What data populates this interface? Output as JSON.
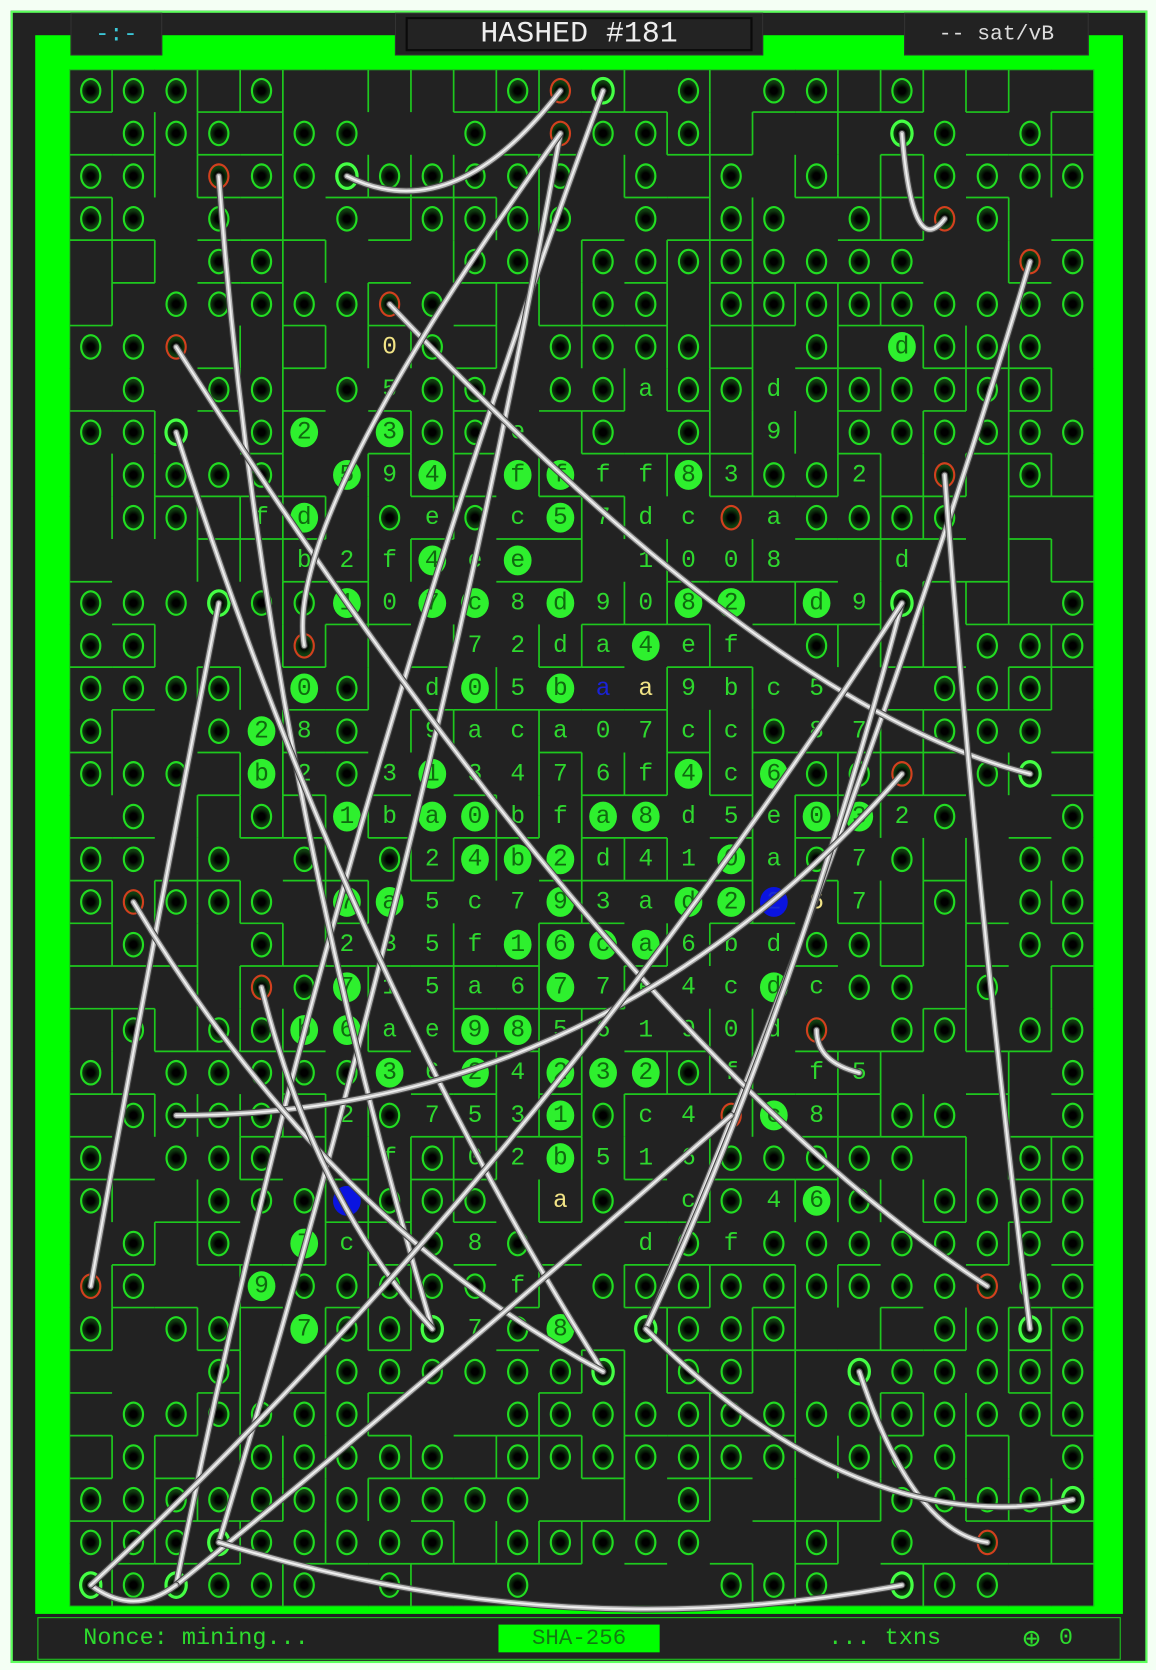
{
  "header": {
    "left_label": "-:-",
    "title": "HASHED #181",
    "fee_label": "-- sat/vB"
  },
  "footer": {
    "nonce_label": "Nonce: mining...",
    "algorithm": "SHA-256",
    "txns_label": "... txns",
    "add_icon": "circle-plus-icon",
    "count": "0"
  },
  "colors": {
    "frame_green": "#00ff00",
    "grid_line": "#1ec81e",
    "background": "#222222",
    "hole_ring": "#22dd22",
    "hole_red": "#d2401e",
    "char_yellow": "#f2e486",
    "char_blue": "#0a14e0",
    "wire": "#c8c8c8"
  },
  "legend_tokens": {
    "o": "hole",
    "r": "red-hole",
    "w": "wire-hole",
    ".": "empty",
    "*": "filled-char",
    "^": "yellow-char",
    "~": "blue-char",
    "#": "blue-filled"
  },
  "grid": [
    "o o o . o . . . . . o r w . o . o o . o . . . .",
    ". o o o . o o . . o . r o o o . . . . w o . o .",
    "o o . r o o w o o o o o . o . o . o . . o o o o",
    "o o . o . . o . o o o o . o . o o . o . r o . .",
    ". . . o o . . . . o o . o o o o o o o o . . r o",
    ". . o o o o o r o . . . o o . o o o o o o o o o",
    "o o r . . . . ^0 o . . o o o o . . o . *d o o o .",
    ". o . o o . o 5 o o . o o a o o d o o o o o o .",
    "o o w . o *2 . *3 o o e . o . o . 9 . o o o o o o",
    ". o o o o . *5 9 *4 . *f *f f f *8 3 o o 2 . r . o .",
    ". o o . f *d . o e o c *5 7 d c r a o o o o . . .",
    ". . . . . b 2 f *4 e *e . . 1 0 0 8 . . d . . . .",
    "o o o w o o *1 0 *7 *c 8 *d 9 0 *8 *2 . *d 9 w . . . o",
    "o o . . . r . . . 7 2 d a *4 e f . o . . . o o o",
    "o o o o . *0 o . d *0 5 *b ~a ^a 9 b c 5 . . o o o .",
    "o . . o *2 8 o . 9 a c a 0 7 c c o 8 7 . o o o .",
    "o o o . *b 2 o 3 *1 3 4 7 6 f *4 c *6 o o r . o w .",
    ". o . . o . *1 b *a *0 b f *a *8 d 5 e *0 *3 2 o . . o",
    "o o . o . o . o 2 *4 *b *2 d 4 1 *0 a o 7 o . . o o",
    "o r o o o . *7 *a 5 c 7 *9 3 a *d *2 #2 ^6 7 . o . o o",
    ". o . . o . 2 3 5 f *1 *6 *c *a 6 b d o o . . . o o",
    ". . . . r o *7 1 5 a 6 *7 7 e 4 c *d c o o . o . .",
    ". o . o o *b *6 a e *9 *8 5 6 1 9 0 d r . o o . o o",
    "o . o o o o o *3 6 *2 4 *2 *3 *2 o f . f 5 . . . . o",
    ". o o o o . 2 o 7 5 3 *1 o c 4 r *c 8 . o o . . o",
    "o . o o o . . f o 0 2 *b 5 1 6 o o o o o . . o o",
    "o . . o o o # o o o . ^a o . c o 4 *6 o . o o o o",
    ". o . o . *7 c . o 8 o . . d o f o o o o o o o o",
    "r o . . *9 o o o o o f . o o o o o o o o o r o o",
    "o . o o . *7 o o w 7 o *8 . w o o o . . . o o w o",
    ". . . o . . o o o o o o w . o o . . w o o o o o",
    ". o o o o o o . . . o o o o o o o o o o o o o o",
    ". o . . o o o o o . o o o o o o o . o o o . . o",
    "o o o o o o o o o o o . . . o . . . . o o o o w",
    "o o o w o o o o o . o o o o o . . o . o . r . .",
    "w o w o o o . o . . o . . . . o o o . w o o . ."
  ]
}
